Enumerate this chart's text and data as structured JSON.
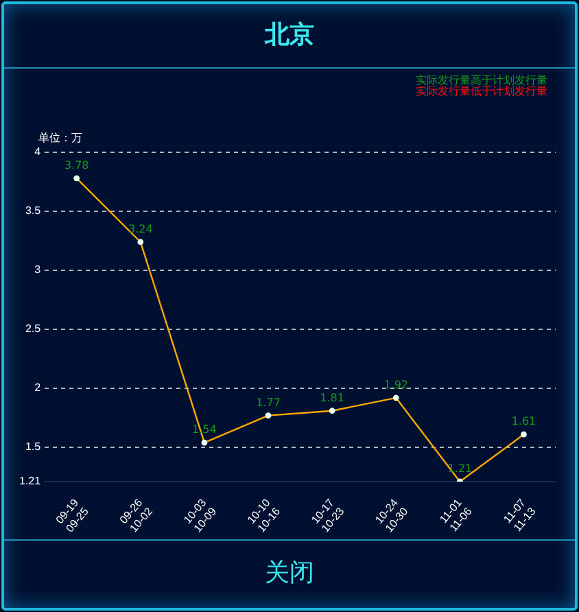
{
  "chart_data": {
    "type": "line",
    "title": "北京",
    "ylabel": "单位：万",
    "annotations": [
      "实际发行量高于计划发行量",
      "实际发行量低于计划发行量",
      "关闭"
    ],
    "categories": [
      "09-19\n09-25",
      "09-26\n10-02",
      "10-03\n10-09",
      "10-10\n10-16",
      "10-17\n10-23",
      "10-24\n10-30",
      "11-01\n11-06",
      "11-07\n11-13"
    ],
    "series": [
      {
        "color": "#ffa800",
        "values": [
          3.78,
          3.24,
          1.54,
          1.77,
          1.81,
          1.92,
          1.21,
          1.61
        ]
      }
    ],
    "ylim": [
      1.21,
      4
    ],
    "yticks": [
      1.21,
      1.5,
      2,
      2.5,
      3,
      3.5,
      4
    ],
    "grid": "y",
    "marker": "circle",
    "line_style": "solid",
    "data_labels": true,
    "legend": false
  }
}
